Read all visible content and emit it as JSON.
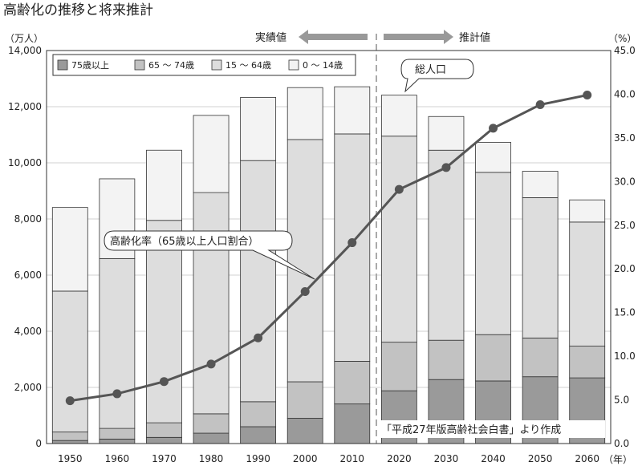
{
  "chart_data": {
    "type": "bar",
    "title": "高齢化の推移と将来推計",
    "y_left_unit": "（万人）",
    "y_right_unit": "（%）",
    "x_unit": "（年）",
    "categories": [
      "1950",
      "1960",
      "1970",
      "1980",
      "1990",
      "2000",
      "2010",
      "2020",
      "2030",
      "2040",
      "2050",
      "2060"
    ],
    "ylim_left": [
      0,
      14000
    ],
    "ylim_right": [
      0,
      45
    ],
    "y_left_ticks": [
      "0",
      "2,000",
      "4,000",
      "6,000",
      "8,000",
      "10,000",
      "12,000",
      "14,000"
    ],
    "y_right_ticks": [
      "0.0",
      "5.0",
      "10.0",
      "15.0",
      "20.0",
      "25.0",
      "30.0",
      "35.0",
      "40.0",
      "45.0"
    ],
    "series": [
      {
        "name": "75歳以上",
        "color": "#9a9a9a",
        "values": [
          110,
          160,
          220,
          370,
          600,
          900,
          1410,
          1880,
          2280,
          2230,
          2380,
          2340
        ]
      },
      {
        "name": "65 ～ 74歳",
        "color": "#c2c2c2",
        "values": [
          300,
          380,
          520,
          690,
          890,
          1300,
          1520,
          1730,
          1400,
          1650,
          1380,
          1130
        ]
      },
      {
        "name": "15 ～ 64歳",
        "color": "#dddddd",
        "values": [
          5020,
          6050,
          7210,
          7880,
          8590,
          8630,
          8100,
          7340,
          6770,
          5780,
          5000,
          4420
        ]
      },
      {
        "name": "0 ～ 14歳",
        "color": "#f3f3f3",
        "values": [
          2980,
          2840,
          2500,
          2750,
          2250,
          1850,
          1680,
          1460,
          1200,
          1070,
          940,
          790
        ]
      }
    ],
    "line": {
      "name": "高齢化率（65歳以上人口割合）",
      "values": [
        4.9,
        5.7,
        7.1,
        9.1,
        12.1,
        17.4,
        23.0,
        29.1,
        31.6,
        36.1,
        38.8,
        39.9
      ]
    },
    "annotations": {
      "actual": "実績値",
      "projection": "推計値",
      "total_label": "総人口",
      "source": "「平成27年版高齢社会白書」より作成"
    },
    "grid": true,
    "legend_position": "top-left"
  }
}
